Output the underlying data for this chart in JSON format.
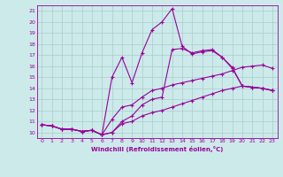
{
  "xlabel": "Windchill (Refroidissement éolien,°C)",
  "bg_color": "#cceaea",
  "line_color": "#990099",
  "grid_color": "#aacccc",
  "xlim": [
    -0.5,
    23.5
  ],
  "ylim": [
    9.5,
    21.5
  ],
  "xticks": [
    0,
    1,
    2,
    3,
    4,
    5,
    6,
    7,
    8,
    9,
    10,
    11,
    12,
    13,
    14,
    15,
    16,
    17,
    18,
    19,
    20,
    21,
    22,
    23
  ],
  "yticks": [
    10,
    11,
    12,
    13,
    14,
    15,
    16,
    17,
    18,
    19,
    20,
    21
  ],
  "lines": [
    {
      "x": [
        0,
        1,
        2,
        3,
        4,
        5,
        6,
        7,
        8,
        9,
        10,
        11,
        12,
        13,
        14,
        15,
        16,
        17,
        18,
        19,
        20,
        21,
        22,
        23
      ],
      "y": [
        10.7,
        10.6,
        10.3,
        10.3,
        10.1,
        10.2,
        9.8,
        15.0,
        16.8,
        14.5,
        17.2,
        19.3,
        20.0,
        21.2,
        17.8,
        17.1,
        17.3,
        17.4,
        16.8,
        15.9,
        14.2,
        14.1,
        14.0,
        13.8
      ]
    },
    {
      "x": [
        0,
        1,
        2,
        3,
        4,
        5,
        6,
        7,
        8,
        9,
        10,
        11,
        12,
        13,
        14,
        15,
        16,
        17,
        18,
        19,
        20,
        21,
        22,
        23
      ],
      "y": [
        10.7,
        10.6,
        10.3,
        10.3,
        10.1,
        10.2,
        9.8,
        10.0,
        11.0,
        11.5,
        12.5,
        13.0,
        13.2,
        17.5,
        17.6,
        17.2,
        17.4,
        17.5,
        16.8,
        15.8,
        14.2,
        14.1,
        14.0,
        13.8
      ]
    },
    {
      "x": [
        0,
        1,
        2,
        3,
        4,
        5,
        6,
        7,
        8,
        9,
        10,
        11,
        12,
        13,
        14,
        15,
        16,
        17,
        18,
        19,
        20,
        21,
        22,
        23
      ],
      "y": [
        10.7,
        10.6,
        10.3,
        10.3,
        10.1,
        10.2,
        9.8,
        11.2,
        12.3,
        12.5,
        13.2,
        13.8,
        14.0,
        14.3,
        14.5,
        14.7,
        14.9,
        15.1,
        15.3,
        15.6,
        15.9,
        16.0,
        16.1,
        15.8
      ]
    },
    {
      "x": [
        0,
        1,
        2,
        3,
        4,
        5,
        6,
        7,
        8,
        9,
        10,
        11,
        12,
        13,
        14,
        15,
        16,
        17,
        18,
        19,
        20,
        21,
        22,
        23
      ],
      "y": [
        10.7,
        10.6,
        10.3,
        10.3,
        10.1,
        10.2,
        9.8,
        10.0,
        10.8,
        11.0,
        11.5,
        11.8,
        12.0,
        12.3,
        12.6,
        12.9,
        13.2,
        13.5,
        13.8,
        14.0,
        14.2,
        14.1,
        14.0,
        13.8
      ]
    }
  ],
  "marker": "+",
  "markersize": 3.5,
  "linewidth": 0.8
}
